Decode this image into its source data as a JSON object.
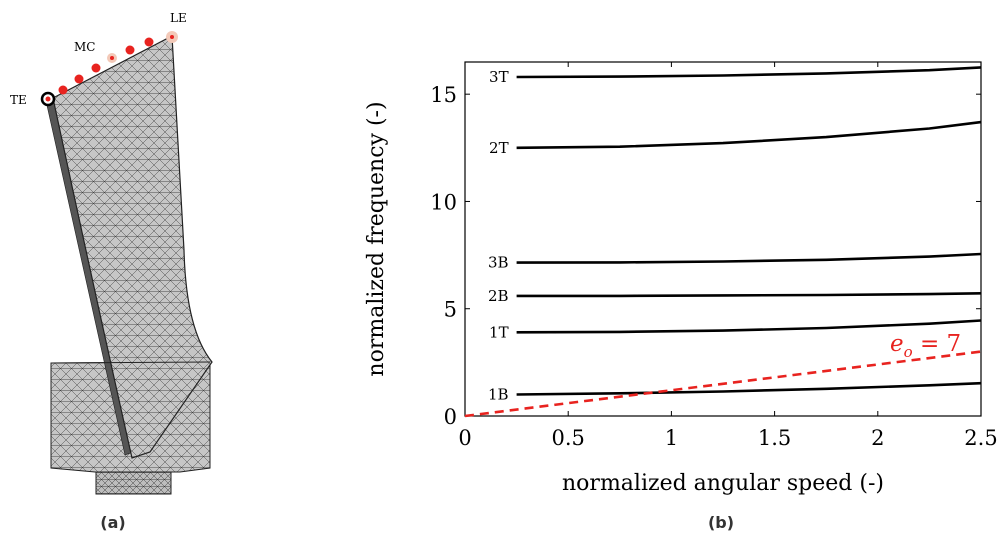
{
  "left_panel": {
    "caption": "(a)",
    "labels": {
      "le": "LE",
      "mc": "MC",
      "te": "TE"
    }
  },
  "right_panel": {
    "caption": "(b)",
    "annotation": {
      "e": "e",
      "sub": "o",
      "rest": " = 7"
    }
  },
  "colors": {
    "curve": "#000000",
    "excitation": "#e8231f",
    "mesh_fill": "#c6c6c6",
    "mesh_line": "#3a3a3a",
    "marker": "#e8231f",
    "marker_le": "#f3c9b8"
  },
  "chart_data": {
    "type": "line",
    "xlabel": "normalized angular speed (-)",
    "ylabel": "normalized frequency (-)",
    "xlim": [
      0,
      2.5
    ],
    "ylim": [
      0,
      16.5
    ],
    "xticks": [
      0,
      0.5,
      1,
      1.5,
      2,
      2.5
    ],
    "xtick_labels": [
      "0",
      "0.5",
      "1",
      "1.5",
      "2",
      "2.5"
    ],
    "yticks": [
      0,
      5,
      10,
      15
    ],
    "ytick_labels": [
      "0",
      "5",
      "10",
      "15"
    ],
    "grid": false,
    "series": [
      {
        "name": "1B",
        "x": [
          0.25,
          0.75,
          1.25,
          1.75,
          2.25,
          2.5
        ],
        "y": [
          1.0,
          1.06,
          1.14,
          1.27,
          1.43,
          1.53
        ]
      },
      {
        "name": "1T",
        "x": [
          0.25,
          0.75,
          1.25,
          1.75,
          2.25,
          2.5
        ],
        "y": [
          3.9,
          3.92,
          3.98,
          4.1,
          4.3,
          4.45
        ]
      },
      {
        "name": "2B",
        "x": [
          0.25,
          0.75,
          1.25,
          1.75,
          2.25,
          2.5
        ],
        "y": [
          5.6,
          5.6,
          5.62,
          5.64,
          5.68,
          5.72
        ]
      },
      {
        "name": "3B",
        "x": [
          0.25,
          0.75,
          1.25,
          1.75,
          2.25,
          2.5
        ],
        "y": [
          7.15,
          7.16,
          7.2,
          7.28,
          7.43,
          7.55
        ]
      },
      {
        "name": "2T",
        "x": [
          0.25,
          0.75,
          1.25,
          1.75,
          2.25,
          2.5
        ],
        "y": [
          12.5,
          12.55,
          12.72,
          13.0,
          13.4,
          13.7
        ]
      },
      {
        "name": "3T",
        "x": [
          0.25,
          0.75,
          1.25,
          1.75,
          2.25,
          2.5
        ],
        "y": [
          15.8,
          15.82,
          15.87,
          15.97,
          16.12,
          16.25
        ]
      },
      {
        "x": [
          0,
          2.5
        ],
        "y": [
          0,
          3.0
        ],
        "style": "dashed"
      }
    ]
  }
}
